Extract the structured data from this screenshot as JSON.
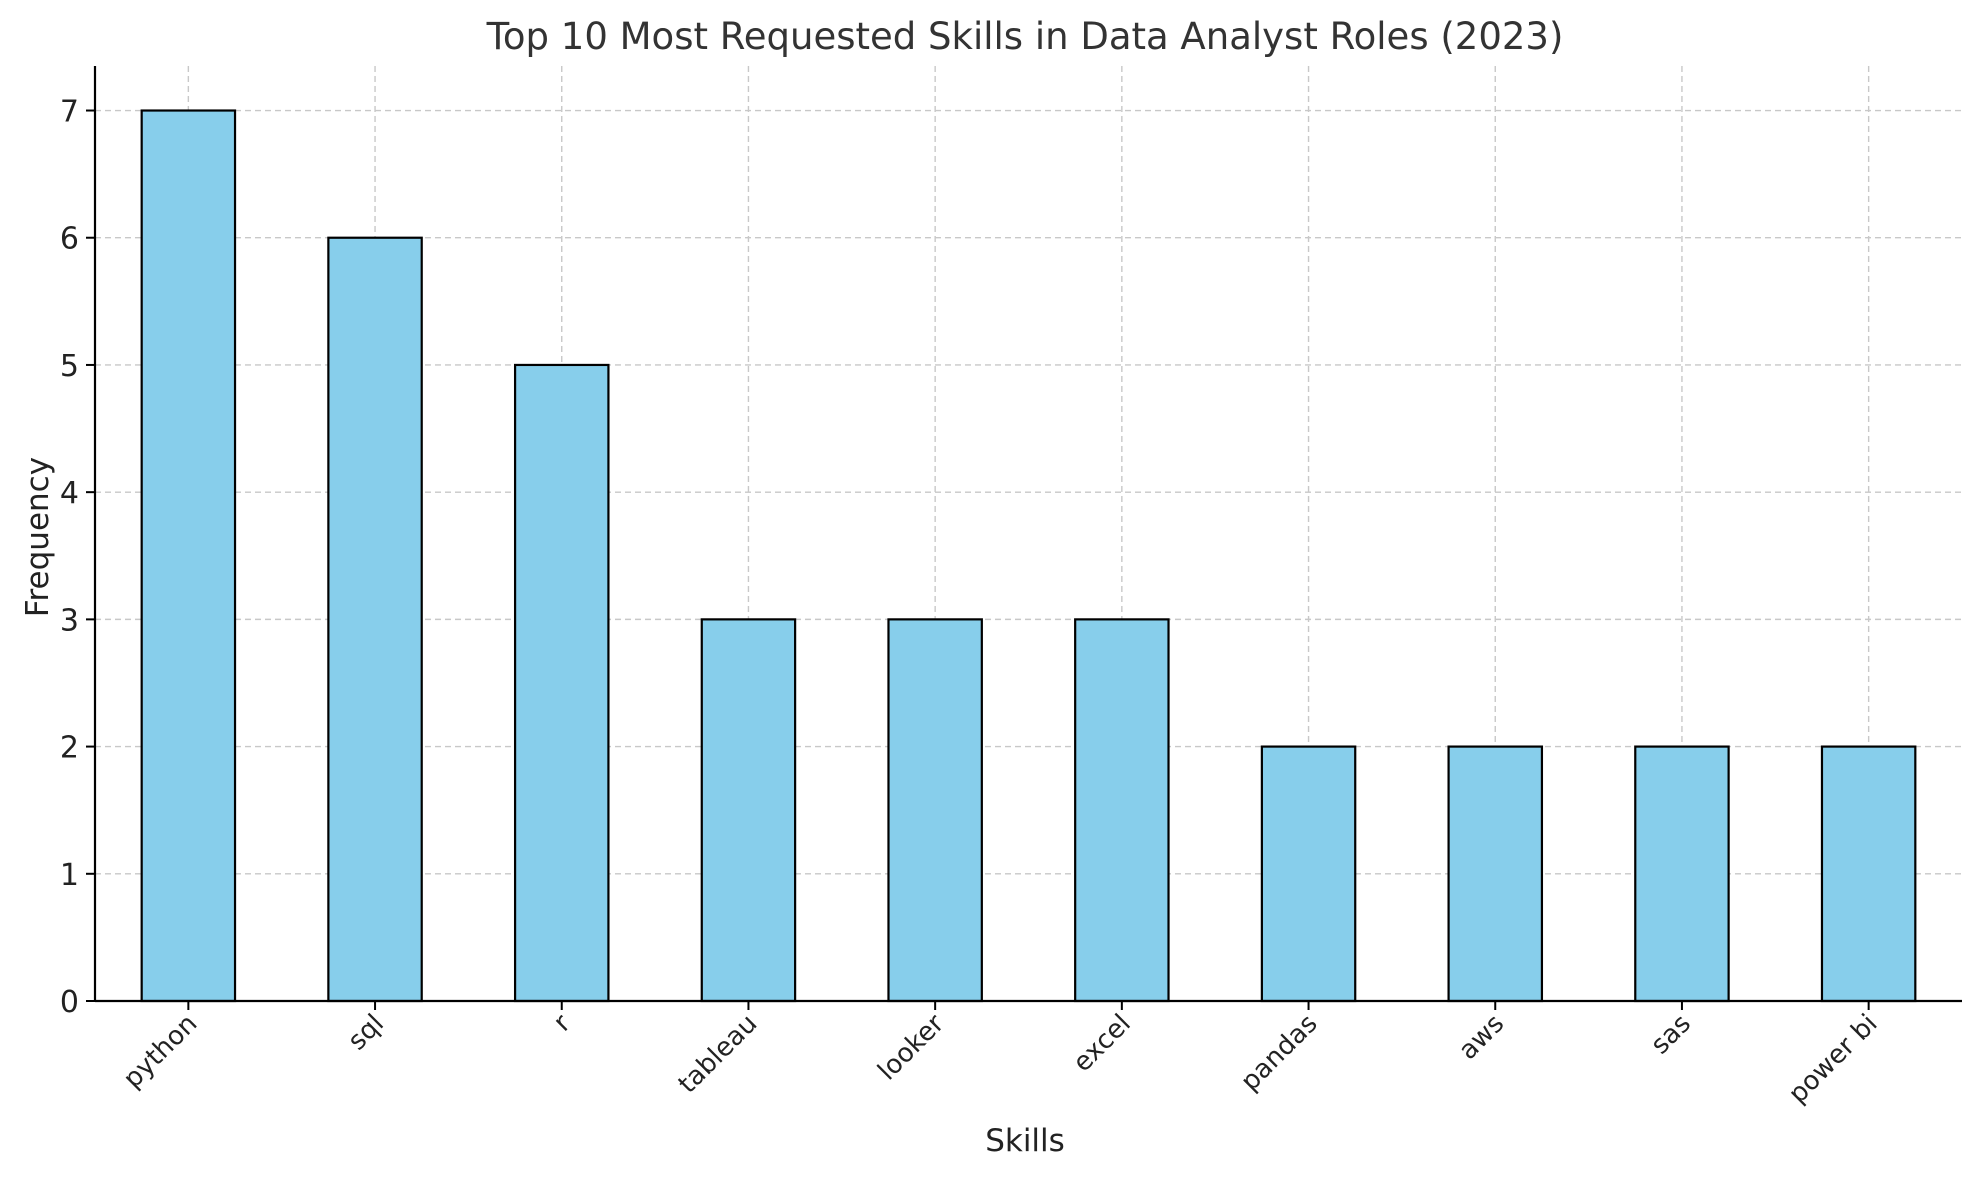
{
  "chart_data": {
    "type": "bar",
    "title": "Top 10 Most Requested Skills in Data Analyst Roles (2023)",
    "xlabel": "Skills",
    "ylabel": "Frequency",
    "categories": [
      "python",
      "sql",
      "r",
      "tableau",
      "looker",
      "excel",
      "pandas",
      "aws",
      "sas",
      "power bi"
    ],
    "values": [
      7,
      6,
      5,
      3,
      3,
      3,
      2,
      2,
      2,
      2
    ],
    "ylim": [
      0,
      7.35
    ],
    "yticks": [
      0,
      1,
      2,
      3,
      4,
      5,
      6,
      7
    ],
    "grid": true,
    "colors": {
      "bar_fill": "#87ceeb",
      "bar_edge": "#000000",
      "grid": "#c8c8c8",
      "axis": "#000000"
    }
  }
}
